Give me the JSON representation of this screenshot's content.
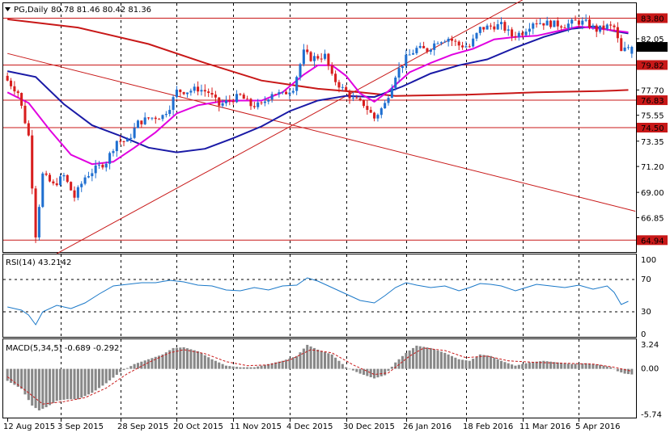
{
  "header": {
    "symbol_label": "PG,Daily",
    "ohlc": "80.78 81.46 80.42 81.36"
  },
  "chart_data": [
    {
      "type": "candlestick",
      "title": "PG,Daily",
      "ylim": [
        64.0,
        85.0
      ],
      "yticks": [
        82.05,
        79.82,
        77.7,
        76.83,
        75.55,
        74.5,
        73.35,
        71.2,
        69.0,
        66.85,
        64.94
      ],
      "ytick_labels": [
        "82.05",
        "79.82",
        "77.70",
        "76.83",
        "75.55",
        "74.50",
        "73.35",
        "71.20",
        "69.00",
        "66.85",
        "64.94"
      ],
      "horizontal_levels": [
        {
          "value": 83.8,
          "label": "83.80"
        },
        {
          "value": 79.82,
          "label": "79.82"
        },
        {
          "value": 76.83,
          "label": "76.83"
        },
        {
          "value": 74.5,
          "label": "74.50"
        },
        {
          "value": 64.94,
          "label": "64.94"
        }
      ],
      "current_price": {
        "value": 81.36,
        "label": "81.36"
      },
      "x_dates": [
        "12 Aug 2015",
        "3 Sep 2015",
        "28 Sep 2015",
        "20 Oct 2015",
        "11 Nov 2015",
        "4 Dec 2015",
        "30 Dec 2015",
        "26 Jan 2016",
        "18 Feb 2016",
        "11 Mar 2016",
        "5 Apr 2016"
      ],
      "x_tick_bar_index": [
        0,
        15,
        32,
        48,
        64,
        80,
        96,
        113,
        130,
        146,
        162
      ],
      "total_bars": 178,
      "last_ohlc": {
        "open": 80.78,
        "high": 81.46,
        "low": 80.42,
        "close": 81.36
      },
      "ma_red_points": [
        [
          0,
          83.7
        ],
        [
          20,
          83.0
        ],
        [
          40,
          81.6
        ],
        [
          56,
          80.0
        ],
        [
          72,
          78.5
        ],
        [
          88,
          77.8
        ],
        [
          100,
          77.5
        ],
        [
          110,
          77.2
        ],
        [
          130,
          77.3
        ],
        [
          150,
          77.5
        ],
        [
          168,
          77.6
        ],
        [
          176,
          77.7
        ]
      ],
      "ma_blue_points": [
        [
          0,
          79.3
        ],
        [
          8,
          78.8
        ],
        [
          16,
          76.5
        ],
        [
          24,
          74.7
        ],
        [
          32,
          73.8
        ],
        [
          40,
          72.8
        ],
        [
          48,
          72.4
        ],
        [
          56,
          72.7
        ],
        [
          64,
          73.6
        ],
        [
          72,
          74.6
        ],
        [
          80,
          75.9
        ],
        [
          88,
          76.8
        ],
        [
          96,
          77.2
        ],
        [
          104,
          77.1
        ],
        [
          112,
          78.0
        ],
        [
          120,
          79.1
        ],
        [
          128,
          79.8
        ],
        [
          136,
          80.3
        ],
        [
          144,
          81.3
        ],
        [
          152,
          82.2
        ],
        [
          160,
          82.9
        ],
        [
          166,
          83.1
        ],
        [
          172,
          82.7
        ],
        [
          176,
          82.5
        ]
      ],
      "ma_magenta_points": [
        [
          0,
          77.5
        ],
        [
          6,
          76.6
        ],
        [
          12,
          74.3
        ],
        [
          18,
          72.2
        ],
        [
          24,
          71.4
        ],
        [
          30,
          71.6
        ],
        [
          36,
          72.8
        ],
        [
          42,
          74.1
        ],
        [
          48,
          75.7
        ],
        [
          54,
          76.4
        ],
        [
          60,
          76.7
        ],
        [
          66,
          76.8
        ],
        [
          72,
          76.8
        ],
        [
          78,
          77.5
        ],
        [
          84,
          79.0
        ],
        [
          88,
          79.8
        ],
        [
          92,
          79.8
        ],
        [
          96,
          78.9
        ],
        [
          100,
          77.4
        ],
        [
          104,
          76.7
        ],
        [
          108,
          77.6
        ],
        [
          114,
          79.2
        ],
        [
          120,
          80.0
        ],
        [
          126,
          80.7
        ],
        [
          132,
          81.2
        ],
        [
          138,
          82.0
        ],
        [
          144,
          82.2
        ],
        [
          150,
          82.3
        ],
        [
          156,
          82.7
        ],
        [
          162,
          83.1
        ],
        [
          168,
          82.9
        ],
        [
          176,
          82.6
        ]
      ],
      "trendlines": [
        {
          "from": [
            0,
            80.8
          ],
          "to": [
            178,
            67.4
          ]
        },
        {
          "from": [
            14,
            63.8
          ],
          "to": [
            150,
            86.0
          ]
        }
      ],
      "close_path": [
        [
          0,
          78.5
        ],
        [
          3,
          77.5
        ],
        [
          6,
          73.8
        ],
        [
          8,
          65.4
        ],
        [
          10,
          70.5
        ],
        [
          13,
          69.6
        ],
        [
          16,
          70.4
        ],
        [
          19,
          68.6
        ],
        [
          22,
          70.3
        ],
        [
          25,
          71.0
        ],
        [
          28,
          71.6
        ],
        [
          31,
          73.4
        ],
        [
          34,
          73.3
        ],
        [
          37,
          74.9
        ],
        [
          40,
          75.3
        ],
        [
          44,
          75.5
        ],
        [
          46,
          76.3
        ],
        [
          48,
          77.6
        ],
        [
          51,
          77.6
        ],
        [
          54,
          77.8
        ],
        [
          57,
          77.5
        ],
        [
          60,
          76.4
        ],
        [
          63,
          76.8
        ],
        [
          66,
          77.2
        ],
        [
          69,
          76.4
        ],
        [
          72,
          76.4
        ],
        [
          75,
          77.5
        ],
        [
          78,
          77.3
        ],
        [
          81,
          77.9
        ],
        [
          84,
          80.9
        ],
        [
          86,
          80.4
        ],
        [
          88,
          80.5
        ],
        [
          90,
          80.6
        ],
        [
          92,
          78.8
        ],
        [
          95,
          77.8
        ],
        [
          98,
          76.9
        ],
        [
          101,
          76.5
        ],
        [
          104,
          75.3
        ],
        [
          107,
          76.5
        ],
        [
          110,
          79.0
        ],
        [
          113,
          80.4
        ],
        [
          116,
          81.2
        ],
        [
          119,
          81.1
        ],
        [
          122,
          81.9
        ],
        [
          125,
          82.1
        ],
        [
          128,
          81.5
        ],
        [
          131,
          81.4
        ],
        [
          134,
          82.9
        ],
        [
          137,
          83.1
        ],
        [
          140,
          83.2
        ],
        [
          143,
          82.3
        ],
        [
          146,
          82.6
        ],
        [
          149,
          83.5
        ],
        [
          152,
          83.4
        ],
        [
          155,
          83.3
        ],
        [
          158,
          83.2
        ],
        [
          161,
          83.5
        ],
        [
          164,
          83.4
        ],
        [
          167,
          82.8
        ],
        [
          170,
          83.1
        ],
        [
          172,
          83.0
        ],
        [
          174,
          80.9
        ],
        [
          176,
          81.36
        ]
      ],
      "rsi": {
        "label": "RSI(14) 43.2142",
        "ylim": [
          0,
          100
        ],
        "yticks": [
          100,
          70,
          30,
          0
        ],
        "ytick_labels": [
          "100",
          "70",
          "30",
          "0"
        ],
        "points": [
          [
            0,
            36
          ],
          [
            4,
            32
          ],
          [
            6,
            26
          ],
          [
            8,
            14
          ],
          [
            10,
            30
          ],
          [
            14,
            38
          ],
          [
            18,
            34
          ],
          [
            22,
            41
          ],
          [
            26,
            52
          ],
          [
            30,
            62
          ],
          [
            34,
            64
          ],
          [
            38,
            66
          ],
          [
            42,
            66
          ],
          [
            46,
            69
          ],
          [
            50,
            67
          ],
          [
            54,
            63
          ],
          [
            58,
            62
          ],
          [
            62,
            57
          ],
          [
            66,
            56
          ],
          [
            70,
            60
          ],
          [
            74,
            57
          ],
          [
            78,
            62
          ],
          [
            82,
            63
          ],
          [
            85,
            72
          ],
          [
            88,
            68
          ],
          [
            92,
            60
          ],
          [
            96,
            52
          ],
          [
            100,
            44
          ],
          [
            104,
            41
          ],
          [
            107,
            50
          ],
          [
            110,
            60
          ],
          [
            113,
            66
          ],
          [
            116,
            63
          ],
          [
            120,
            60
          ],
          [
            124,
            62
          ],
          [
            128,
            56
          ],
          [
            131,
            60
          ],
          [
            134,
            65
          ],
          [
            137,
            64
          ],
          [
            140,
            62
          ],
          [
            144,
            56
          ],
          [
            147,
            60
          ],
          [
            150,
            64
          ],
          [
            154,
            62
          ],
          [
            158,
            60
          ],
          [
            162,
            63
          ],
          [
            166,
            58
          ],
          [
            170,
            62
          ],
          [
            172,
            54
          ],
          [
            174,
            39
          ],
          [
            176,
            43
          ]
        ]
      },
      "macd": {
        "label": "MACD(5,34,5) -0.689 -0.292",
        "ylim": [
          -6.0,
          3.6
        ],
        "yticks": [
          3.24,
          0.0,
          -5.74
        ],
        "ytick_labels": [
          "3.24",
          "0.00",
          "-5.74"
        ],
        "histogram_points": [
          [
            0,
            -1.5
          ],
          [
            4,
            -2.5
          ],
          [
            7,
            -4.6
          ],
          [
            9,
            -5.2
          ],
          [
            11,
            -4.8
          ],
          [
            14,
            -4.0
          ],
          [
            17,
            -3.8
          ],
          [
            20,
            -3.8
          ],
          [
            24,
            -3.0
          ],
          [
            28,
            -1.8
          ],
          [
            32,
            -0.4
          ],
          [
            36,
            0.6
          ],
          [
            40,
            1.2
          ],
          [
            44,
            1.8
          ],
          [
            47,
            2.6
          ],
          [
            50,
            2.7
          ],
          [
            54,
            2.2
          ],
          [
            58,
            1.2
          ],
          [
            62,
            0.4
          ],
          [
            66,
            0.2
          ],
          [
            70,
            0.2
          ],
          [
            74,
            0.6
          ],
          [
            78,
            1.0
          ],
          [
            82,
            1.6
          ],
          [
            85,
            3.0
          ],
          [
            88,
            2.4
          ],
          [
            92,
            1.8
          ],
          [
            96,
            0.2
          ],
          [
            100,
            -0.6
          ],
          [
            104,
            -1.2
          ],
          [
            107,
            -0.8
          ],
          [
            110,
            0.8
          ],
          [
            113,
            2.0
          ],
          [
            116,
            2.9
          ],
          [
            120,
            2.6
          ],
          [
            124,
            2.0
          ],
          [
            128,
            1.2
          ],
          [
            131,
            1.0
          ],
          [
            134,
            1.8
          ],
          [
            137,
            1.6
          ],
          [
            140,
            1.0
          ],
          [
            144,
            0.4
          ],
          [
            148,
            0.8
          ],
          [
            152,
            1.0
          ],
          [
            156,
            0.8
          ],
          [
            160,
            0.6
          ],
          [
            164,
            0.7
          ],
          [
            168,
            0.5
          ],
          [
            171,
            0.2
          ],
          [
            173,
            -0.3
          ],
          [
            175,
            -0.6
          ],
          [
            177,
            -0.7
          ]
        ],
        "signal_points": [
          [
            0,
            -1.0
          ],
          [
            6,
            -3.0
          ],
          [
            10,
            -4.4
          ],
          [
            16,
            -4.1
          ],
          [
            22,
            -3.6
          ],
          [
            28,
            -2.4
          ],
          [
            34,
            -0.6
          ],
          [
            40,
            0.8
          ],
          [
            46,
            2.0
          ],
          [
            50,
            2.4
          ],
          [
            56,
            1.9
          ],
          [
            62,
            0.9
          ],
          [
            68,
            0.4
          ],
          [
            74,
            0.5
          ],
          [
            80,
            1.1
          ],
          [
            86,
            2.4
          ],
          [
            92,
            2.0
          ],
          [
            98,
            0.5
          ],
          [
            104,
            -0.7
          ],
          [
            108,
            -0.5
          ],
          [
            114,
            1.6
          ],
          [
            118,
            2.6
          ],
          [
            124,
            2.3
          ],
          [
            130,
            1.4
          ],
          [
            136,
            1.6
          ],
          [
            142,
            1.0
          ],
          [
            150,
            0.8
          ],
          [
            158,
            0.7
          ],
          [
            166,
            0.6
          ],
          [
            172,
            0.2
          ],
          [
            177,
            -0.3
          ]
        ]
      },
      "colors": {
        "bull": "#1f6fd0",
        "bear": "#d81e1e",
        "ma_blue": "#1a1aa6",
        "ma_red": "#c81818",
        "ma_magenta": "#e000e0",
        "level_line": "#c81818",
        "rsi_line": "#1a78c8",
        "macd_hist": "#888888",
        "macd_signal": "#c81818"
      }
    }
  ]
}
